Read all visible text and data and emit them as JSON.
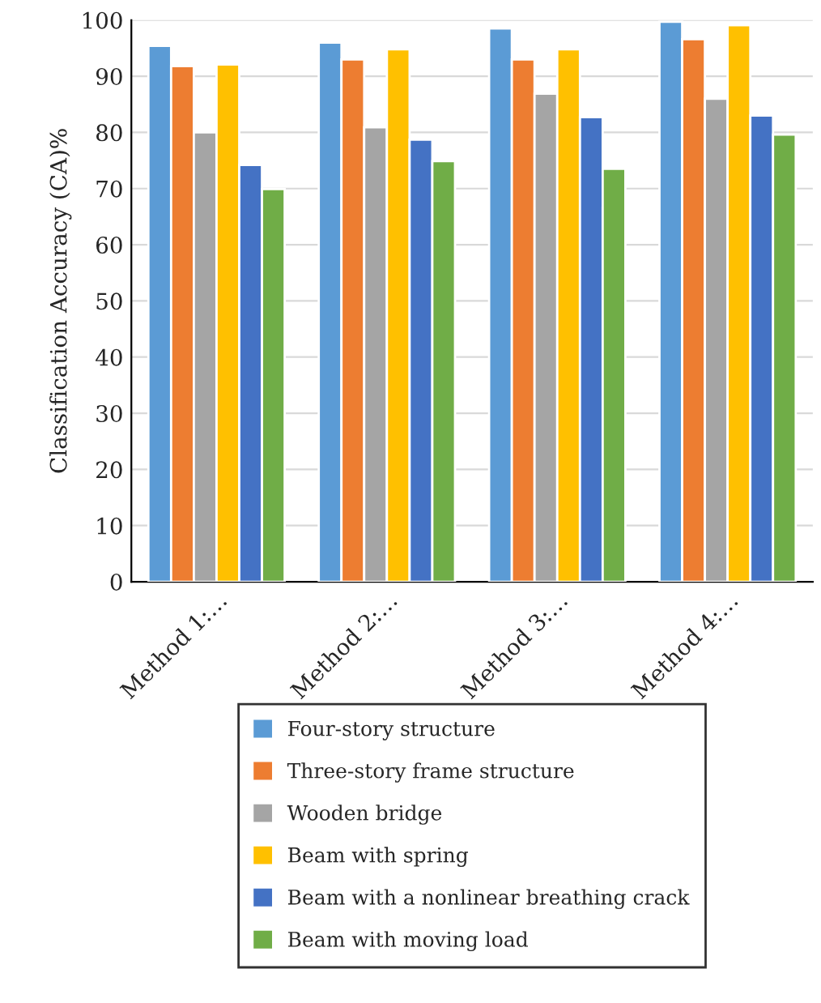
{
  "chart_data": {
    "type": "bar",
    "ylabel": "Classification Accuracy (CA)%",
    "categories": [
      "Method 1:…",
      "Method 2:…",
      "Method 3:…",
      "Method 4:…"
    ],
    "series": [
      {
        "name": "Four-story structure",
        "color": "#5b9bd5",
        "values": [
          95.4,
          96.0,
          98.5,
          99.7
        ]
      },
      {
        "name": "Three-story frame structure",
        "color": "#ed7d31",
        "values": [
          91.8,
          93.0,
          93.0,
          96.6
        ]
      },
      {
        "name": "Wooden bridge",
        "color": "#a5a5a5",
        "values": [
          80.0,
          80.9,
          86.9,
          86.0
        ]
      },
      {
        "name": "Beam with spring",
        "color": "#ffc000",
        "values": [
          92.1,
          94.8,
          94.8,
          99.1
        ]
      },
      {
        "name": "Beam with a nonlinear breathing crack",
        "color": "#4472c4",
        "values": [
          74.2,
          78.7,
          82.7,
          83.0
        ]
      },
      {
        "name": "Beam with moving load",
        "color": "#70ad47",
        "values": [
          69.9,
          74.9,
          73.5,
          79.6
        ]
      }
    ],
    "ylim": [
      0,
      100
    ],
    "yticks": [
      0,
      10,
      20,
      30,
      40,
      50,
      60,
      70,
      80,
      90,
      100
    ],
    "grid": "y",
    "legend": "bottom"
  }
}
